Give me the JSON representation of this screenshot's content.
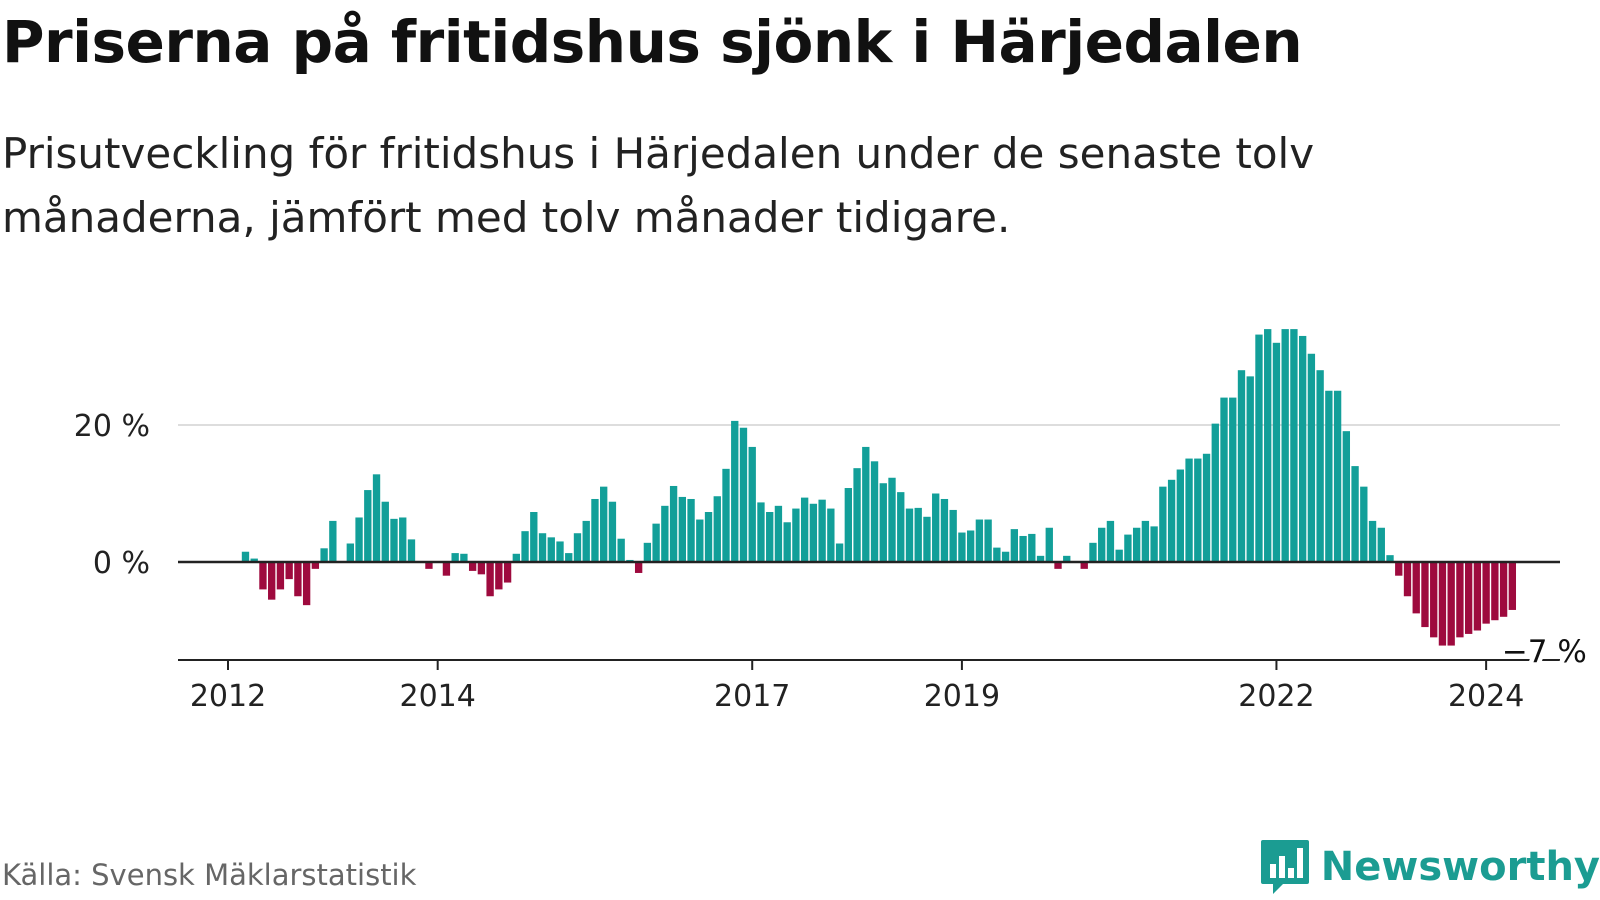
{
  "title": "Priserna på fritidshus sjönk i Härjedalen",
  "subtitle": "Prisutveckling för fritidshus i Härjedalen under de senaste tolv månaderna, jämfört med tolv månader tidigare.",
  "source": "Källa: Svensk Mäklarstatistik",
  "brand": {
    "name": "Newsworthy",
    "icon": "newsworthy-logo-icon"
  },
  "colors": {
    "positive": "#129f99",
    "negative": "#9e0a3e",
    "axis": "#222222",
    "grid": "#dddddd"
  },
  "chart_data": {
    "type": "bar",
    "title": "Priserna på fritidshus sjönk i Härjedalen",
    "xlabel": "",
    "ylabel": "",
    "unit": "%",
    "ylim": [
      -14,
      34
    ],
    "grid": true,
    "x_tick_labels": [
      "2012",
      "2014",
      "2017",
      "2019",
      "2022",
      "2024"
    ],
    "x_tick_dates": [
      "2012-01",
      "2014-01",
      "2017-01",
      "2019-01",
      "2022-01",
      "2024-01"
    ],
    "y_tick_labels": [
      "20 %",
      "0 %"
    ],
    "y_tick_values": [
      20,
      0
    ],
    "end_label": "−7 %",
    "start": "2012-01",
    "values": [
      0,
      0,
      1.5,
      0.5,
      -4,
      -5.5,
      -4,
      -2.5,
      -5,
      -6.3,
      -1,
      2,
      6,
      0,
      2.7,
      6.5,
      10.5,
      12.8,
      8.8,
      6.3,
      6.5,
      3.3,
      0,
      -1,
      0,
      -2,
      1.3,
      1.2,
      -1.3,
      -1.8,
      -5,
      -4,
      -3,
      1.2,
      4.5,
      7.3,
      4.2,
      3.6,
      3,
      1.3,
      4.2,
      6,
      9.2,
      11,
      8.8,
      3.4,
      0.3,
      -1.6,
      2.8,
      5.6,
      8.2,
      11.1,
      9.5,
      9.2,
      6.2,
      7.3,
      9.6,
      13.6,
      20.6,
      19.6,
      16.8,
      8.7,
      7.3,
      8.2,
      5.8,
      7.8,
      9.4,
      8.5,
      9.1,
      7.8,
      2.7,
      10.8,
      13.7,
      16.8,
      14.7,
      11.5,
      12.3,
      10.2,
      7.8,
      7.9,
      6.6,
      10,
      9.2,
      7.6,
      4.3,
      4.6,
      6.2,
      6.2,
      2.1,
      1.5,
      4.8,
      3.8,
      4.1,
      0.9,
      5,
      -1,
      0.9,
      0,
      -1,
      2.8,
      5,
      6,
      1.8,
      4,
      5,
      6,
      5.2,
      11,
      12,
      13.5,
      15.1,
      15.1,
      15.8,
      20.2,
      24,
      24,
      28,
      27.1,
      33.2,
      34,
      32,
      34,
      34,
      33,
      30.4,
      28,
      25,
      25,
      19.1,
      14,
      11,
      6,
      5,
      1,
      -2,
      -5,
      -7.5,
      -9.5,
      -11,
      -12.2,
      -12.2,
      -11,
      -10.5,
      -10,
      -9,
      -8.5,
      -8,
      -7
    ]
  }
}
